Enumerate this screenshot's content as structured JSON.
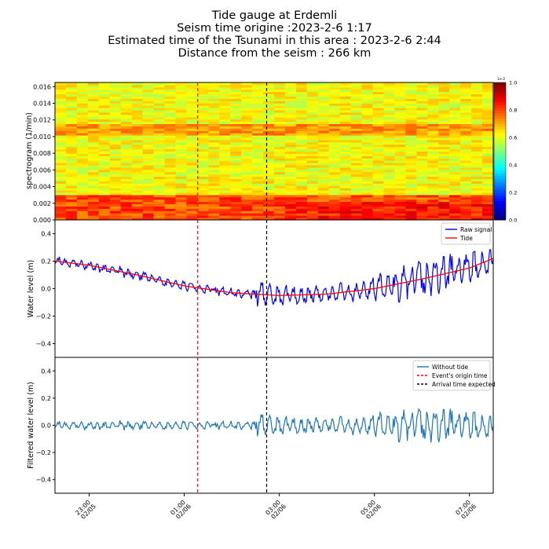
{
  "title_lines": [
    "Tide gauge at Erdemli",
    "Seism time origine :2023-2-6 1:17",
    "Estimated time of the Tsunami in this area : 2023-2-6 2:44",
    "Distance from the seism : 266 km"
  ],
  "chart_data": [
    {
      "type": "heatmap",
      "ylabel": "spectrogram (1/min)",
      "ylim": [
        0,
        0.0165
      ],
      "yticks": [
        "0.000",
        "0.002",
        "0.004",
        "0.006",
        "0.008",
        "0.010",
        "0.012",
        "0.014",
        "0.016"
      ],
      "colorbar": {
        "scale_label": "1e-2",
        "ticks": [
          "0.0",
          "0.2",
          "0.4",
          "0.6",
          "0.8",
          "1.0"
        ],
        "colormap": "jet"
      }
    },
    {
      "type": "line",
      "ylabel": "Water level (m)",
      "ylim": [
        -0.5,
        0.5
      ],
      "yticks": [
        "−0.4",
        "−0.2",
        "0.0",
        "0.2",
        "0.4"
      ],
      "legend": {
        "placement": "top-right",
        "entries": [
          "Raw signal",
          "Tide"
        ]
      },
      "series": [
        {
          "name": "Raw signal",
          "color": "#0000ff"
        },
        {
          "name": "Tide",
          "color": "#ff0000",
          "x_hours": [
            22.3,
            23,
            24,
            25,
            26,
            27,
            28,
            29,
            30,
            31,
            31.5
          ],
          "y": [
            0.2,
            0.17,
            0.1,
            0.02,
            -0.03,
            -0.05,
            -0.04,
            0.0,
            0.07,
            0.15,
            0.22
          ]
        }
      ]
    },
    {
      "type": "line",
      "ylabel": "Filtered water level (m)",
      "ylim": [
        -0.5,
        0.5
      ],
      "yticks": [
        "−0.4",
        "−0.2",
        "0.0",
        "0.2",
        "0.4"
      ],
      "legend": {
        "placement": "top-right",
        "entries": [
          "Without tide",
          "Event's origin time",
          "Arrival time expected"
        ]
      },
      "series": [
        {
          "name": "Without tide",
          "color": "#1f77b4"
        }
      ]
    }
  ],
  "x_axis": {
    "range_hours": [
      22.28,
      31.5
    ],
    "ticks": [
      {
        "h": 23,
        "time": "23:00",
        "date": "02/05"
      },
      {
        "h": 25,
        "time": "01:00",
        "date": "02/06"
      },
      {
        "h": 27,
        "time": "03:00",
        "date": "02/06"
      },
      {
        "h": 29,
        "time": "05:00",
        "date": "02/06"
      },
      {
        "h": 31,
        "time": "07:00",
        "date": "02/06"
      }
    ]
  },
  "events": {
    "origin_hours": 25.283,
    "arrival_hours": 26.733,
    "origin_color": "#ff0000",
    "arrival_color": "#000000"
  }
}
